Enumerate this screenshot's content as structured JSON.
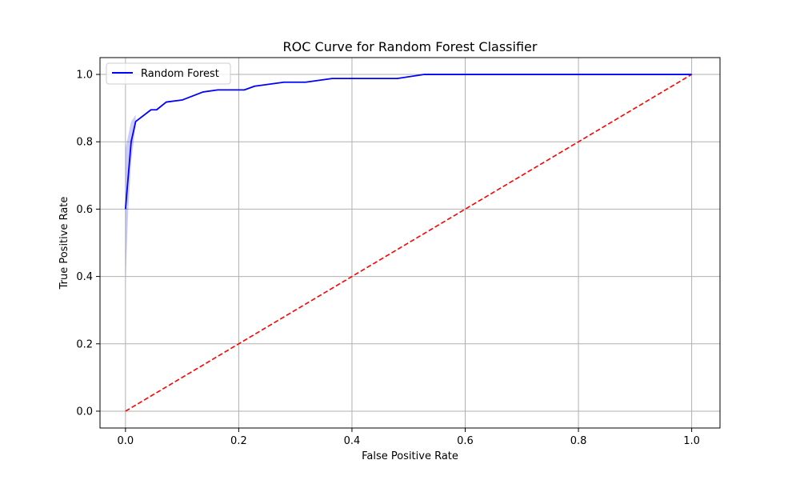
{
  "chart_data": {
    "type": "line",
    "title": "ROC Curve for Random Forest Classifier",
    "xlabel": "False Positive Rate",
    "ylabel": "True Positive Rate",
    "xlim": [
      -0.045,
      1.05
    ],
    "ylim": [
      -0.05,
      1.05
    ],
    "xticks": [
      0.0,
      0.2,
      0.4,
      0.6,
      0.8,
      1.0
    ],
    "xtick_labels": [
      "0.0",
      "0.2",
      "0.4",
      "0.6",
      "0.8",
      "1.0"
    ],
    "yticks": [
      0.0,
      0.2,
      0.4,
      0.6,
      0.8,
      1.0
    ],
    "ytick_labels": [
      "0.0",
      "0.2",
      "0.4",
      "0.6",
      "0.8",
      "1.0"
    ],
    "grid": true,
    "legend_position": "top-left",
    "series": [
      {
        "name": "Random Forest",
        "color": "#0000ff",
        "x": [
          0.0,
          0.0,
          0.005,
          0.01,
          0.018,
          0.045,
          0.055,
          0.072,
          0.1,
          0.137,
          0.163,
          0.21,
          0.228,
          0.28,
          0.318,
          0.365,
          0.48,
          0.528,
          0.6,
          0.8,
          1.0
        ],
        "y": [
          0.6,
          0.6,
          0.7,
          0.8,
          0.86,
          0.895,
          0.895,
          0.918,
          0.924,
          0.948,
          0.954,
          0.954,
          0.965,
          0.977,
          0.977,
          0.988,
          0.988,
          1.0,
          1.0,
          1.0,
          1.0
        ]
      }
    ],
    "confidence_band": {
      "color": "#0000ff",
      "opacity": 0.2,
      "x": [
        0.0,
        0.005,
        0.01,
        0.018
      ],
      "lower": [
        0.38,
        0.6,
        0.74,
        0.85
      ],
      "upper": [
        0.78,
        0.82,
        0.86,
        0.88
      ]
    },
    "reference_line": {
      "color": "#ff0000",
      "style": "dashed",
      "x": [
        0.0,
        1.0
      ],
      "y": [
        0.0,
        1.0
      ]
    }
  }
}
